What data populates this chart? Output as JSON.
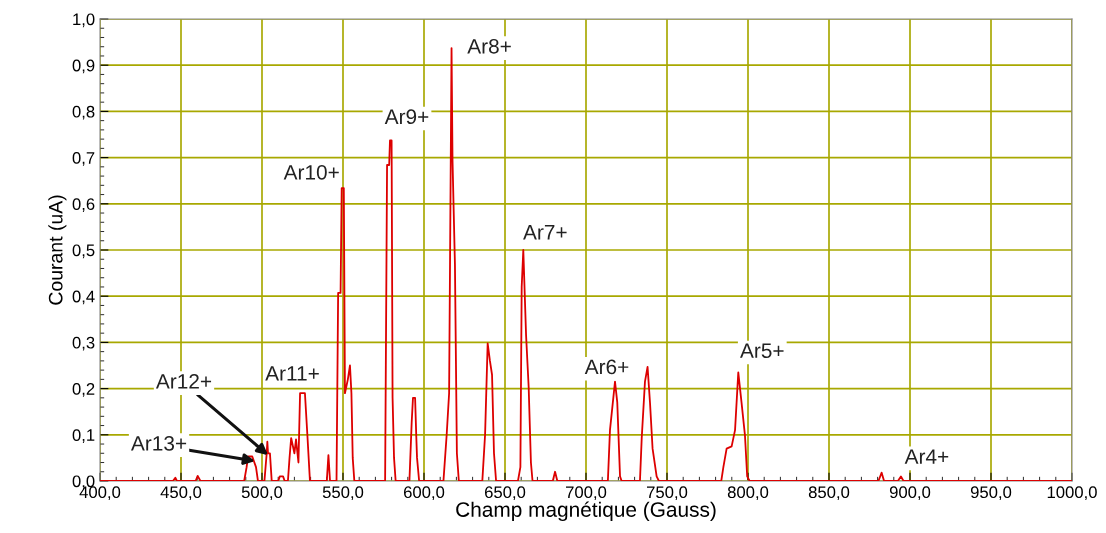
{
  "chart_data": {
    "type": "line",
    "xlabel": "Champ magnétique (Gauss)",
    "ylabel": "Courant (uA)",
    "xlim": [
      400,
      1000
    ],
    "ylim": [
      0,
      1
    ],
    "xticks": [
      {
        "value": 400,
        "label": "400,0"
      },
      {
        "value": 450,
        "label": "450,0"
      },
      {
        "value": 500,
        "label": "500,0"
      },
      {
        "value": 550,
        "label": "550,0"
      },
      {
        "value": 600,
        "label": "600,0"
      },
      {
        "value": 650,
        "label": "650,0"
      },
      {
        "value": 700,
        "label": "700,0"
      },
      {
        "value": 750,
        "label": "750,0"
      },
      {
        "value": 800,
        "label": "800,0"
      },
      {
        "value": 850,
        "label": "850,0"
      },
      {
        "value": 900,
        "label": "900,0"
      },
      {
        "value": 950,
        "label": "950,0"
      },
      {
        "value": 1000,
        "label": "1000,0"
      }
    ],
    "yticks": [
      {
        "value": 0,
        "label": "0,0"
      },
      {
        "value": 0.1,
        "label": "0,1"
      },
      {
        "value": 0.2,
        "label": "0,2"
      },
      {
        "value": 0.3,
        "label": "0,3"
      },
      {
        "value": 0.4,
        "label": "0,4"
      },
      {
        "value": 0.5,
        "label": "0,5"
      },
      {
        "value": 0.6,
        "label": "0,6"
      },
      {
        "value": 0.7,
        "label": "0,7"
      },
      {
        "value": 0.8,
        "label": "0,8"
      },
      {
        "value": 0.9,
        "label": "0,9"
      },
      {
        "value": 1,
        "label": "1,0"
      }
    ],
    "grid": true,
    "marker": "none",
    "line_style": "solid",
    "series": [
      {
        "color": "#dd0000",
        "x": [
          400,
          445,
          446.5,
          447.5,
          459,
          460.3,
          462,
          489,
          490.5,
          491.4,
          494,
          496.3,
          497.5,
          501.5,
          502.9,
          503.3,
          503.7,
          504.9,
          506,
          510,
          511,
          513,
          514,
          516,
          517,
          518,
          520,
          521,
          522.5,
          523.5,
          526.5,
          528,
          529.6,
          540,
          541,
          542,
          546,
          547,
          548.5,
          549.2,
          550.5,
          551.2,
          553,
          554.3,
          555.2,
          556,
          557,
          576,
          577.2,
          578.5,
          579,
          580,
          580.6,
          581.5,
          582.5,
          591,
          592.4,
          593.2,
          594.5,
          595.2,
          595.7,
          597,
          612,
          614,
          615.5,
          617,
          617.6,
          619.1,
          620.3,
          621.5,
          636,
          637.7,
          639.3,
          640.7,
          642,
          643.2,
          644.5,
          658,
          659.5,
          660.3,
          661.3,
          663,
          664.6,
          666,
          667,
          679.5,
          680.9,
          682.3,
          713.5,
          714.8,
          717.9,
          719.3,
          721,
          722,
          733.3,
          734.4,
          736.4,
          738,
          739.5,
          741.1,
          743.6,
          745,
          783.5,
          784.8,
          786.8,
          789.9,
          792,
          794,
          796,
          798.1,
          799.5,
          801,
          880.5,
          882.5,
          884,
          892.5,
          894.4,
          896,
          1000
        ],
        "values": [
          0,
          0,
          0.007,
          0,
          0,
          0.011,
          0,
          0,
          0.03,
          0.053,
          0.053,
          0.03,
          0,
          0,
          0.06,
          0.085,
          0.06,
          0.06,
          0,
          0,
          0.01,
          0.01,
          0,
          0,
          0.05,
          0.093,
          0.06,
          0.09,
          0.04,
          0.19,
          0.19,
          0.1,
          0,
          0,
          0.056,
          0,
          0,
          0.407,
          0.407,
          0.634,
          0.634,
          0.19,
          0.22,
          0.25,
          0.19,
          0.05,
          0,
          0,
          0.684,
          0.684,
          0.737,
          0.737,
          0.18,
          0.05,
          0,
          0,
          0.127,
          0.18,
          0.18,
          0.1,
          0.05,
          0,
          0,
          0.1,
          0.19,
          0.937,
          0.695,
          0.468,
          0.06,
          0,
          0,
          0.1,
          0.298,
          0.26,
          0.23,
          0.06,
          0,
          0,
          0.03,
          0.42,
          0.5,
          0.316,
          0.204,
          0.04,
          0,
          0,
          0.02,
          0,
          0,
          0.11,
          0.215,
          0.17,
          0.01,
          0,
          0,
          0.093,
          0.215,
          0.247,
          0.17,
          0.07,
          0.01,
          0,
          0,
          0.03,
          0.07,
          0.075,
          0.11,
          0.235,
          0.17,
          0.1,
          0.01,
          0,
          0,
          0.018,
          0,
          0,
          0.01,
          0,
          0
        ]
      }
    ],
    "annotations": [
      {
        "text": "Ar13+",
        "x": 495.7,
        "y": 0.043
      },
      {
        "text": "Ar12+",
        "x": 503.7,
        "y": 0.056
      },
      {
        "text": "Ar11+",
        "x": 525,
        "y": 0.19
      },
      {
        "text": "Ar10+",
        "x": 549.2,
        "y": 0.634
      },
      {
        "text": "Ar9+",
        "x": 579,
        "y": 0.737
      },
      {
        "text": "Ar8+",
        "x": 617,
        "y": 0.937
      },
      {
        "text": "Ar7+",
        "x": 661.3,
        "y": 0.5
      },
      {
        "text": "Ar6+",
        "x": 717.9,
        "y": 0.215
      },
      {
        "text": "Ar5+",
        "x": 794,
        "y": 0.235
      },
      {
        "text": "Ar4+",
        "x": 894.4,
        "y": 0.01
      }
    ]
  }
}
